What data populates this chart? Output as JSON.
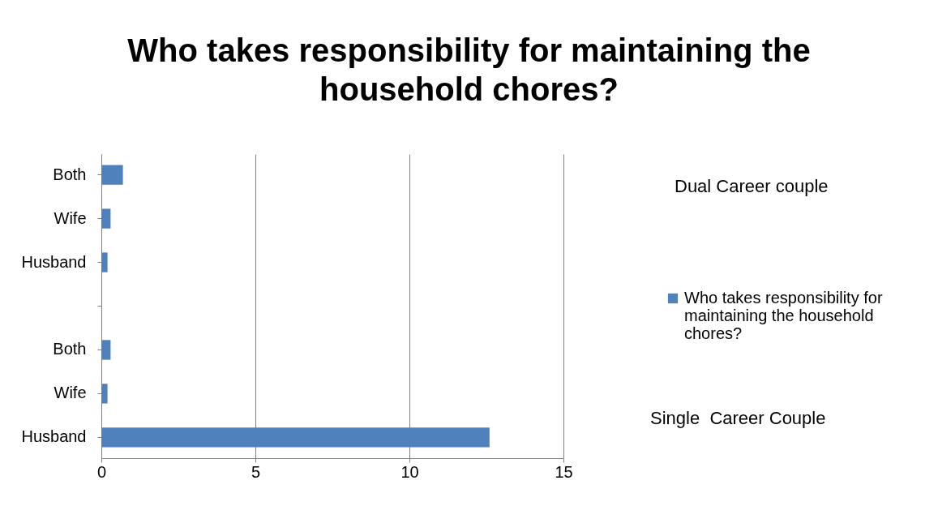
{
  "chart_data": {
    "type": "bar",
    "orientation": "horizontal",
    "title": "Who takes responsibility for maintaining the household chores?",
    "categories": [
      "Both",
      "Wife",
      "Husband",
      null,
      "Both",
      "Wife",
      "Husband"
    ],
    "series": [
      {
        "name": "Who takes responsibility for maintaining the household chores?",
        "color": "#4f81bd",
        "values": [
          0.7,
          0.3,
          0.2,
          null,
          0.3,
          0.2,
          12.6
        ]
      }
    ],
    "xlim": [
      0,
      15
    ],
    "xticks": [
      0,
      5,
      10,
      15
    ],
    "grid": "x",
    "legend": "right",
    "annotations": [
      "Dual Career couple",
      "Single  Career Couple"
    ]
  }
}
